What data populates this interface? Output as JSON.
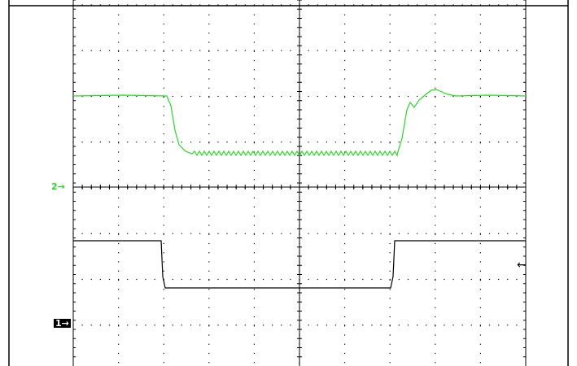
{
  "scope": {
    "channel2_marker": "2→",
    "channel1_marker": "1→",
    "trigger_marker": "←",
    "colors": {
      "channel2": "#22dd22",
      "channel1": "#000000",
      "grid": "#000000",
      "background": "#ffffff"
    },
    "grid": {
      "horizontal_divisions": 10,
      "vertical_divisions": 8
    }
  }
}
